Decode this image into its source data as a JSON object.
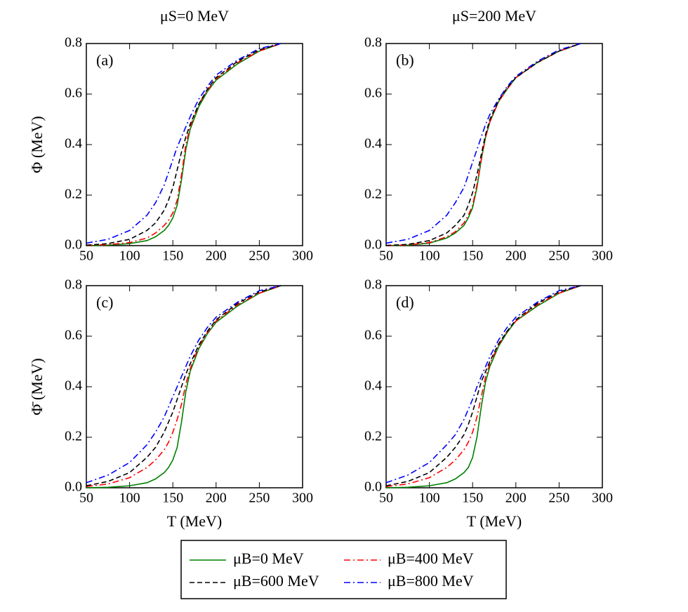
{
  "chart_data": [
    {
      "type": "line",
      "title": "μS=0 MeV",
      "ylabel": "Φ (MeV)",
      "annotation": "(a)",
      "x": [
        50,
        75,
        100,
        120,
        130,
        140,
        145,
        150,
        155,
        160,
        165,
        170,
        180,
        190,
        200,
        225,
        250,
        275
      ],
      "xlim": [
        50,
        300
      ],
      "xticks": [
        50,
        100,
        150,
        200,
        250,
        300
      ],
      "ylim": [
        0,
        0.8
      ],
      "yticks": [
        {
          "value": 0,
          "label": "0.0"
        },
        0.2,
        0.4,
        0.6,
        0.8
      ],
      "series": [
        {
          "name": "μB=0 MeV",
          "color": "#008000",
          "dash": "solid",
          "values": [
            0,
            0.002,
            0.008,
            0.02,
            0.035,
            0.06,
            0.08,
            0.11,
            0.16,
            0.26,
            0.38,
            0.46,
            0.55,
            0.61,
            0.655,
            0.72,
            0.77,
            0.8
          ]
        },
        {
          "name": "μB=400 MeV",
          "color": "#ff0000",
          "dash": "dashdot",
          "values": [
            0.001,
            0.004,
            0.012,
            0.03,
            0.05,
            0.08,
            0.1,
            0.13,
            0.18,
            0.28,
            0.4,
            0.47,
            0.56,
            0.615,
            0.66,
            0.725,
            0.77,
            0.8
          ]
        },
        {
          "name": "μB=600 MeV",
          "color": "#000000",
          "dash": "dash",
          "values": [
            0.002,
            0.008,
            0.025,
            0.06,
            0.09,
            0.14,
            0.18,
            0.23,
            0.3,
            0.37,
            0.43,
            0.48,
            0.56,
            0.62,
            0.665,
            0.73,
            0.775,
            0.8
          ]
        },
        {
          "name": "μB=800 MeV",
          "color": "#0000ff",
          "dash": "dashdot",
          "values": [
            0.01,
            0.025,
            0.06,
            0.12,
            0.17,
            0.24,
            0.29,
            0.34,
            0.39,
            0.43,
            0.47,
            0.51,
            0.58,
            0.63,
            0.675,
            0.735,
            0.78,
            0.8
          ]
        }
      ]
    },
    {
      "type": "line",
      "title": "μS=200 MeV",
      "annotation": "(b)",
      "x": [
        50,
        75,
        100,
        120,
        130,
        140,
        145,
        150,
        155,
        160,
        165,
        170,
        180,
        190,
        200,
        225,
        250,
        275
      ],
      "xlim": [
        50,
        300
      ],
      "xticks": [
        50,
        100,
        150,
        200,
        250,
        300
      ],
      "ylim": [
        0,
        0.8
      ],
      "yticks": [
        {
          "value": 0,
          "label": "0.0"
        },
        0.2,
        0.4,
        0.6,
        0.8
      ],
      "series": [
        {
          "name": "μB=0 MeV",
          "color": "#008000",
          "dash": "solid",
          "values": [
            0,
            0.002,
            0.01,
            0.03,
            0.05,
            0.08,
            0.11,
            0.15,
            0.23,
            0.34,
            0.43,
            0.49,
            0.57,
            0.62,
            0.665,
            0.725,
            0.77,
            0.8
          ]
        },
        {
          "name": "μB=400 MeV",
          "color": "#ff0000",
          "dash": "dashdot",
          "values": [
            0,
            0.003,
            0.012,
            0.035,
            0.055,
            0.09,
            0.12,
            0.16,
            0.24,
            0.34,
            0.43,
            0.49,
            0.57,
            0.62,
            0.665,
            0.725,
            0.77,
            0.8
          ]
        },
        {
          "name": "μB=600 MeV",
          "color": "#000000",
          "dash": "dash",
          "values": [
            0.001,
            0.005,
            0.02,
            0.05,
            0.08,
            0.12,
            0.16,
            0.21,
            0.28,
            0.36,
            0.44,
            0.5,
            0.575,
            0.625,
            0.665,
            0.725,
            0.77,
            0.8
          ]
        },
        {
          "name": "μB=800 MeV",
          "color": "#0000ff",
          "dash": "dashdot",
          "values": [
            0.01,
            0.025,
            0.06,
            0.12,
            0.17,
            0.23,
            0.28,
            0.33,
            0.38,
            0.43,
            0.48,
            0.52,
            0.58,
            0.63,
            0.67,
            0.73,
            0.775,
            0.8
          ]
        }
      ]
    },
    {
      "type": "line",
      "xlabel": "T (MeV)",
      "ylabel": "Φ̄ (MeV)",
      "annotation": "(c)",
      "x": [
        50,
        75,
        100,
        120,
        130,
        140,
        145,
        150,
        155,
        160,
        165,
        170,
        180,
        190,
        200,
        225,
        250,
        275
      ],
      "xlim": [
        50,
        300
      ],
      "xticks": [
        50,
        100,
        150,
        200,
        250,
        300
      ],
      "ylim": [
        0,
        0.8
      ],
      "yticks": [
        {
          "value": 0,
          "label": "0.0"
        },
        0.2,
        0.4,
        0.6,
        0.8
      ],
      "series": [
        {
          "name": "μB=0 MeV",
          "color": "#008000",
          "dash": "solid",
          "values": [
            0,
            0.002,
            0.008,
            0.02,
            0.035,
            0.06,
            0.08,
            0.11,
            0.16,
            0.26,
            0.38,
            0.46,
            0.55,
            0.61,
            0.655,
            0.72,
            0.77,
            0.8
          ]
        },
        {
          "name": "μB=400 MeV",
          "color": "#ff0000",
          "dash": "dashdot",
          "values": [
            0.005,
            0.015,
            0.04,
            0.08,
            0.11,
            0.15,
            0.18,
            0.22,
            0.27,
            0.33,
            0.41,
            0.47,
            0.56,
            0.615,
            0.66,
            0.725,
            0.77,
            0.8
          ]
        },
        {
          "name": "μB=600 MeV",
          "color": "#000000",
          "dash": "dash",
          "values": [
            0.008,
            0.025,
            0.06,
            0.12,
            0.16,
            0.22,
            0.26,
            0.3,
            0.35,
            0.4,
            0.45,
            0.49,
            0.565,
            0.62,
            0.665,
            0.73,
            0.775,
            0.8
          ]
        },
        {
          "name": "μB=800 MeV",
          "color": "#0000ff",
          "dash": "dashdot",
          "values": [
            0.02,
            0.05,
            0.1,
            0.17,
            0.22,
            0.28,
            0.32,
            0.36,
            0.4,
            0.44,
            0.48,
            0.52,
            0.585,
            0.635,
            0.675,
            0.735,
            0.78,
            0.8
          ]
        }
      ]
    },
    {
      "type": "line",
      "xlabel": "T (MeV)",
      "annotation": "(d)",
      "x": [
        50,
        75,
        100,
        120,
        130,
        140,
        145,
        150,
        155,
        160,
        165,
        170,
        180,
        190,
        200,
        225,
        250,
        275
      ],
      "xlim": [
        50,
        300
      ],
      "xticks": [
        50,
        100,
        150,
        200,
        250,
        300
      ],
      "ylim": [
        0,
        0.8
      ],
      "yticks": [
        {
          "value": 0,
          "label": "0.0"
        },
        0.2,
        0.4,
        0.6,
        0.8
      ],
      "series": [
        {
          "name": "μB=0 MeV",
          "color": "#008000",
          "dash": "solid",
          "values": [
            0,
            0.002,
            0.008,
            0.02,
            0.035,
            0.06,
            0.08,
            0.12,
            0.2,
            0.32,
            0.42,
            0.48,
            0.56,
            0.615,
            0.66,
            0.72,
            0.77,
            0.8
          ]
        },
        {
          "name": "μB=400 MeV",
          "color": "#ff0000",
          "dash": "dashdot",
          "values": [
            0.005,
            0.015,
            0.04,
            0.08,
            0.11,
            0.15,
            0.18,
            0.22,
            0.28,
            0.36,
            0.44,
            0.49,
            0.565,
            0.62,
            0.66,
            0.725,
            0.77,
            0.8
          ]
        },
        {
          "name": "μB=600 MeV",
          "color": "#000000",
          "dash": "dash",
          "values": [
            0.008,
            0.025,
            0.06,
            0.12,
            0.16,
            0.21,
            0.25,
            0.3,
            0.36,
            0.42,
            0.46,
            0.5,
            0.57,
            0.62,
            0.665,
            0.73,
            0.775,
            0.8
          ]
        },
        {
          "name": "μB=800 MeV",
          "color": "#0000ff",
          "dash": "dashdot",
          "values": [
            0.02,
            0.05,
            0.1,
            0.17,
            0.21,
            0.27,
            0.31,
            0.35,
            0.4,
            0.44,
            0.48,
            0.52,
            0.585,
            0.635,
            0.675,
            0.735,
            0.78,
            0.8
          ]
        }
      ]
    }
  ]
}
